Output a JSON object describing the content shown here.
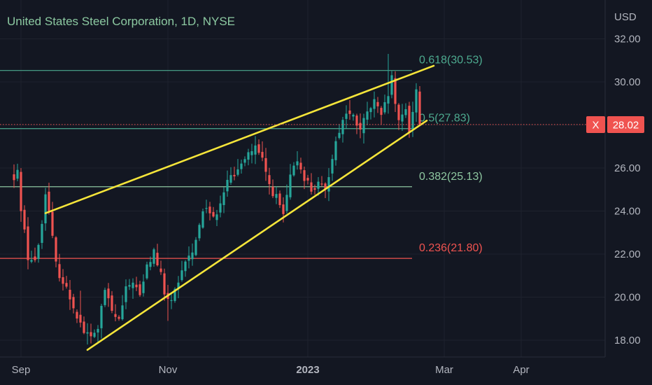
{
  "chart_data": {
    "type": "candlestick",
    "title": "United States Steel Corporation, 1D, NYSE",
    "currency_label": "USD",
    "y_range": [
      17.3,
      33.2
    ],
    "y_ticks": [
      {
        "value": 18,
        "label": "18.00"
      },
      {
        "value": 20,
        "label": "20.00"
      },
      {
        "value": 22,
        "label": "22.00"
      },
      {
        "value": 24,
        "label": "24.00"
      },
      {
        "value": 26,
        "label": "26.00"
      },
      {
        "value": 28,
        "label": "28.00"
      },
      {
        "value": 30,
        "label": "30.00"
      },
      {
        "value": 32,
        "label": "32.00"
      }
    ],
    "x_ticks": [
      {
        "index": 2,
        "label": "Sep",
        "bold": false
      },
      {
        "index": 44,
        "label": "Nov",
        "bold": false
      },
      {
        "index": 84,
        "label": "2023",
        "bold": true
      },
      {
        "index": 123,
        "label": "Mar",
        "bold": false
      },
      {
        "index": 145,
        "label": "Apr",
        "bold": false
      }
    ],
    "x_index_range": [
      -3.5,
      177
    ],
    "last_index": 116,
    "current_price": {
      "value": 28.02,
      "label": "28.02",
      "symbol_label": "X",
      "color": "#f05350"
    },
    "fib_levels": [
      {
        "level": "0.618",
        "price": 30.53,
        "label": "0.618(30.53)",
        "color": "#4daa8f"
      },
      {
        "level": "0.5",
        "price": 27.83,
        "label": "0.5(27.83)",
        "color": "#4daa8f"
      },
      {
        "level": "0.382",
        "price": 25.13,
        "label": "0.382(25.13)",
        "color": "#8ec7a0"
      },
      {
        "level": "0.236",
        "price": 21.8,
        "label": "0.236(21.80)",
        "color": "#f05350"
      }
    ],
    "trendlines": [
      {
        "from": {
          "index": 9,
          "price": 23.9
        },
        "to": {
          "index": 120,
          "price": 30.75
        },
        "color": "#f5e53a"
      },
      {
        "from": {
          "index": 21,
          "price": 17.55
        },
        "to": {
          "index": 118,
          "price": 28.2
        },
        "color": "#f5e53a"
      }
    ],
    "colors": {
      "up": "#26a69a",
      "down": "#ef5350",
      "background": "#131722"
    },
    "close_anchors": [
      [
        0,
        25.4
      ],
      [
        1,
        25.8
      ],
      [
        2,
        24.2
      ],
      [
        4,
        21.9
      ],
      [
        6,
        21.6
      ],
      [
        8,
        23.4
      ],
      [
        9,
        25.0
      ],
      [
        10,
        23.9
      ],
      [
        12,
        21.5
      ],
      [
        14,
        20.7
      ],
      [
        16,
        20.0
      ],
      [
        18,
        19.2
      ],
      [
        20,
        18.4
      ],
      [
        22,
        18.1
      ],
      [
        24,
        18.6
      ],
      [
        26,
        20.3
      ],
      [
        28,
        19.3
      ],
      [
        30,
        18.9
      ],
      [
        32,
        20.3
      ],
      [
        34,
        20.8
      ],
      [
        36,
        20.0
      ],
      [
        38,
        21.4
      ],
      [
        40,
        22.1
      ],
      [
        42,
        21.0
      ],
      [
        43,
        20.0
      ],
      [
        45,
        19.9
      ],
      [
        47,
        20.5
      ],
      [
        49,
        21.7
      ],
      [
        51,
        22.0
      ],
      [
        53,
        23.5
      ],
      [
        55,
        24.3
      ],
      [
        57,
        23.6
      ],
      [
        59,
        24.5
      ],
      [
        61,
        25.6
      ],
      [
        63,
        25.4
      ],
      [
        65,
        26.4
      ],
      [
        67,
        26.7
      ],
      [
        69,
        26.9
      ],
      [
        71,
        26.3
      ],
      [
        73,
        25.2
      ],
      [
        75,
        24.6
      ],
      [
        77,
        23.8
      ],
      [
        79,
        25.5
      ],
      [
        81,
        26.4
      ],
      [
        83,
        25.6
      ],
      [
        85,
        25.0
      ],
      [
        87,
        25.2
      ],
      [
        89,
        24.9
      ],
      [
        91,
        26.6
      ],
      [
        93,
        27.8
      ],
      [
        95,
        28.6
      ],
      [
        97,
        28.3
      ],
      [
        99,
        27.8
      ],
      [
        101,
        28.5
      ],
      [
        103,
        29.1
      ],
      [
        105,
        28.3
      ],
      [
        107,
        29.4
      ],
      [
        108,
        30.1
      ],
      [
        110,
        28.0
      ],
      [
        112,
        28.7
      ],
      [
        113,
        27.8
      ],
      [
        115,
        29.6
      ],
      [
        116,
        28.02
      ]
    ],
    "high_spikes": [
      [
        19,
        20.3
      ],
      [
        44,
        19.3
      ],
      [
        107,
        31.3
      ]
    ],
    "low_spikes": [
      [
        44,
        18.9
      ],
      [
        21,
        17.8
      ]
    ]
  }
}
